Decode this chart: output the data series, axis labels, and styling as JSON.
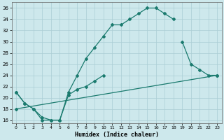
{
  "xlabel": "Humidex (Indice chaleur)",
  "bg_color": "#cde8ec",
  "line_color": "#1a7a6e",
  "grid_color": "#aacdd4",
  "xlim": [
    -0.5,
    23.5
  ],
  "ylim": [
    15.5,
    37
  ],
  "yticks": [
    16,
    18,
    20,
    22,
    24,
    26,
    28,
    30,
    32,
    34,
    36
  ],
  "xticks": [
    0,
    1,
    2,
    3,
    4,
    5,
    6,
    7,
    8,
    9,
    10,
    11,
    12,
    13,
    14,
    15,
    16,
    17,
    18,
    19,
    20,
    21,
    22,
    23
  ],
  "line1_x": [
    0,
    1,
    2,
    3,
    4,
    5,
    6,
    7,
    8,
    9,
    10,
    11,
    12,
    13,
    14,
    15,
    16,
    17,
    18
  ],
  "line1_y": [
    21,
    19,
    18,
    16,
    16,
    16,
    21,
    24,
    27,
    29,
    31,
    33,
    33,
    34,
    35,
    36,
    36,
    35,
    34
  ],
  "line2_x": [
    0,
    1,
    2,
    3,
    4,
    5,
    6,
    7,
    8,
    9,
    10,
    19,
    20,
    21,
    22,
    23
  ],
  "line2_y": [
    21,
    19,
    18,
    16.5,
    16,
    16,
    20.5,
    21.5,
    22,
    23,
    24,
    30,
    26,
    25,
    24,
    24
  ],
  "line3_x": [
    0,
    23
  ],
  "line3_y": [
    18,
    24
  ]
}
